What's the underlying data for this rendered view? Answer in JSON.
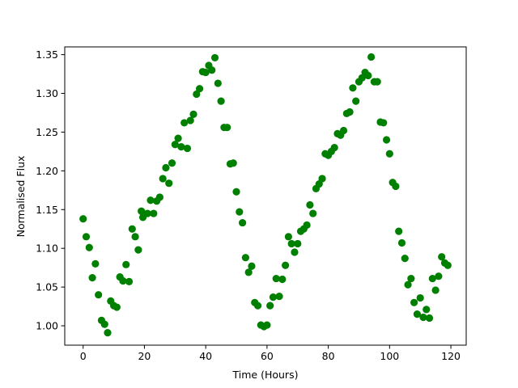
{
  "chart_data": {
    "type": "scatter",
    "title": "",
    "xlabel": "Time (Hours)",
    "ylabel": "Normalised Flux",
    "xlim": [
      -6,
      125
    ],
    "ylim": [
      0.975,
      1.36
    ],
    "xticks": [
      0,
      20,
      40,
      60,
      80,
      100,
      120
    ],
    "yticks": [
      1.0,
      1.05,
      1.1,
      1.15,
      1.2,
      1.25,
      1.3,
      1.35
    ],
    "xtick_labels": [
      "0",
      "20",
      "40",
      "60",
      "80",
      "100",
      "120"
    ],
    "ytick_labels": [
      "1.00",
      "1.05",
      "1.10",
      "1.15",
      "1.20",
      "1.25",
      "1.30",
      "1.35"
    ],
    "grid": false,
    "marker_color": "#008000",
    "points": [
      [
        0.0,
        1.138
      ],
      [
        1.0,
        1.115
      ],
      [
        2.0,
        1.101
      ],
      [
        3.0,
        1.062
      ],
      [
        4.0,
        1.08
      ],
      [
        5.0,
        1.04
      ],
      [
        6.0,
        1.007
      ],
      [
        7.0,
        1.002
      ],
      [
        8.0,
        0.991
      ],
      [
        9.0,
        1.032
      ],
      [
        10.0,
        1.026
      ],
      [
        11.0,
        1.024
      ],
      [
        12.0,
        1.063
      ],
      [
        13.0,
        1.058
      ],
      [
        14.0,
        1.079
      ],
      [
        15.0,
        1.057
      ],
      [
        16.0,
        1.125
      ],
      [
        17.0,
        1.115
      ],
      [
        18.0,
        1.098
      ],
      [
        19.0,
        1.148
      ],
      [
        19.5,
        1.14
      ],
      [
        21.0,
        1.145
      ],
      [
        22.0,
        1.162
      ],
      [
        23.0,
        1.145
      ],
      [
        24.0,
        1.161
      ],
      [
        25.0,
        1.166
      ],
      [
        26.0,
        1.19
      ],
      [
        27.0,
        1.204
      ],
      [
        28.0,
        1.184
      ],
      [
        29.0,
        1.21
      ],
      [
        30.0,
        1.234
      ],
      [
        31.0,
        1.242
      ],
      [
        32.0,
        1.231
      ],
      [
        33.0,
        1.262
      ],
      [
        34.0,
        1.229
      ],
      [
        35.0,
        1.265
      ],
      [
        36.0,
        1.273
      ],
      [
        37.0,
        1.299
      ],
      [
        38.0,
        1.306
      ],
      [
        39.0,
        1.328
      ],
      [
        40.0,
        1.327
      ],
      [
        41.0,
        1.336
      ],
      [
        42.0,
        1.33
      ],
      [
        43.0,
        1.346
      ],
      [
        44.0,
        1.313
      ],
      [
        45.0,
        1.29
      ],
      [
        46.0,
        1.256
      ],
      [
        47.0,
        1.256
      ],
      [
        48.0,
        1.209
      ],
      [
        49.0,
        1.21
      ],
      [
        50.0,
        1.173
      ],
      [
        51.0,
        1.147
      ],
      [
        52.0,
        1.133
      ],
      [
        53.0,
        1.088
      ],
      [
        54.0,
        1.069
      ],
      [
        55.0,
        1.077
      ],
      [
        56.0,
        1.03
      ],
      [
        57.0,
        1.026
      ],
      [
        58.0,
        1.001
      ],
      [
        59.0,
        0.999
      ],
      [
        60.0,
        1.001
      ],
      [
        61.0,
        1.026
      ],
      [
        62.0,
        1.037
      ],
      [
        63.0,
        1.061
      ],
      [
        64.0,
        1.038
      ],
      [
        65.0,
        1.06
      ],
      [
        66.0,
        1.078
      ],
      [
        67.0,
        1.115
      ],
      [
        68.0,
        1.106
      ],
      [
        69.0,
        1.095
      ],
      [
        70.0,
        1.106
      ],
      [
        71.0,
        1.122
      ],
      [
        72.0,
        1.125
      ],
      [
        73.0,
        1.13
      ],
      [
        74.0,
        1.156
      ],
      [
        75.0,
        1.145
      ],
      [
        76.0,
        1.177
      ],
      [
        77.0,
        1.183
      ],
      [
        78.0,
        1.19
      ],
      [
        79.0,
        1.222
      ],
      [
        80.0,
        1.22
      ],
      [
        81.0,
        1.225
      ],
      [
        82.0,
        1.23
      ],
      [
        83.0,
        1.248
      ],
      [
        84.0,
        1.246
      ],
      [
        85.0,
        1.252
      ],
      [
        86.0,
        1.274
      ],
      [
        87.0,
        1.276
      ],
      [
        88.0,
        1.307
      ],
      [
        89.0,
        1.29
      ],
      [
        90.0,
        1.315
      ],
      [
        91.0,
        1.32
      ],
      [
        92.0,
        1.327
      ],
      [
        93.0,
        1.323
      ],
      [
        94.0,
        1.347
      ],
      [
        95.0,
        1.315
      ],
      [
        96.0,
        1.315
      ],
      [
        97.0,
        1.263
      ],
      [
        98.0,
        1.262
      ],
      [
        99.0,
        1.24
      ],
      [
        100.0,
        1.222
      ],
      [
        101.0,
        1.185
      ],
      [
        102.0,
        1.18
      ],
      [
        103.0,
        1.122
      ],
      [
        104.0,
        1.107
      ],
      [
        105.0,
        1.087
      ],
      [
        106.0,
        1.053
      ],
      [
        107.0,
        1.061
      ],
      [
        108.0,
        1.03
      ],
      [
        109.0,
        1.015
      ],
      [
        110.0,
        1.036
      ],
      [
        111.0,
        1.011
      ],
      [
        112.0,
        1.021
      ],
      [
        113.0,
        1.01
      ],
      [
        114.0,
        1.061
      ],
      [
        115.0,
        1.046
      ],
      [
        116.0,
        1.064
      ],
      [
        117.0,
        1.089
      ],
      [
        118.0,
        1.081
      ],
      [
        119.0,
        1.078
      ]
    ]
  }
}
